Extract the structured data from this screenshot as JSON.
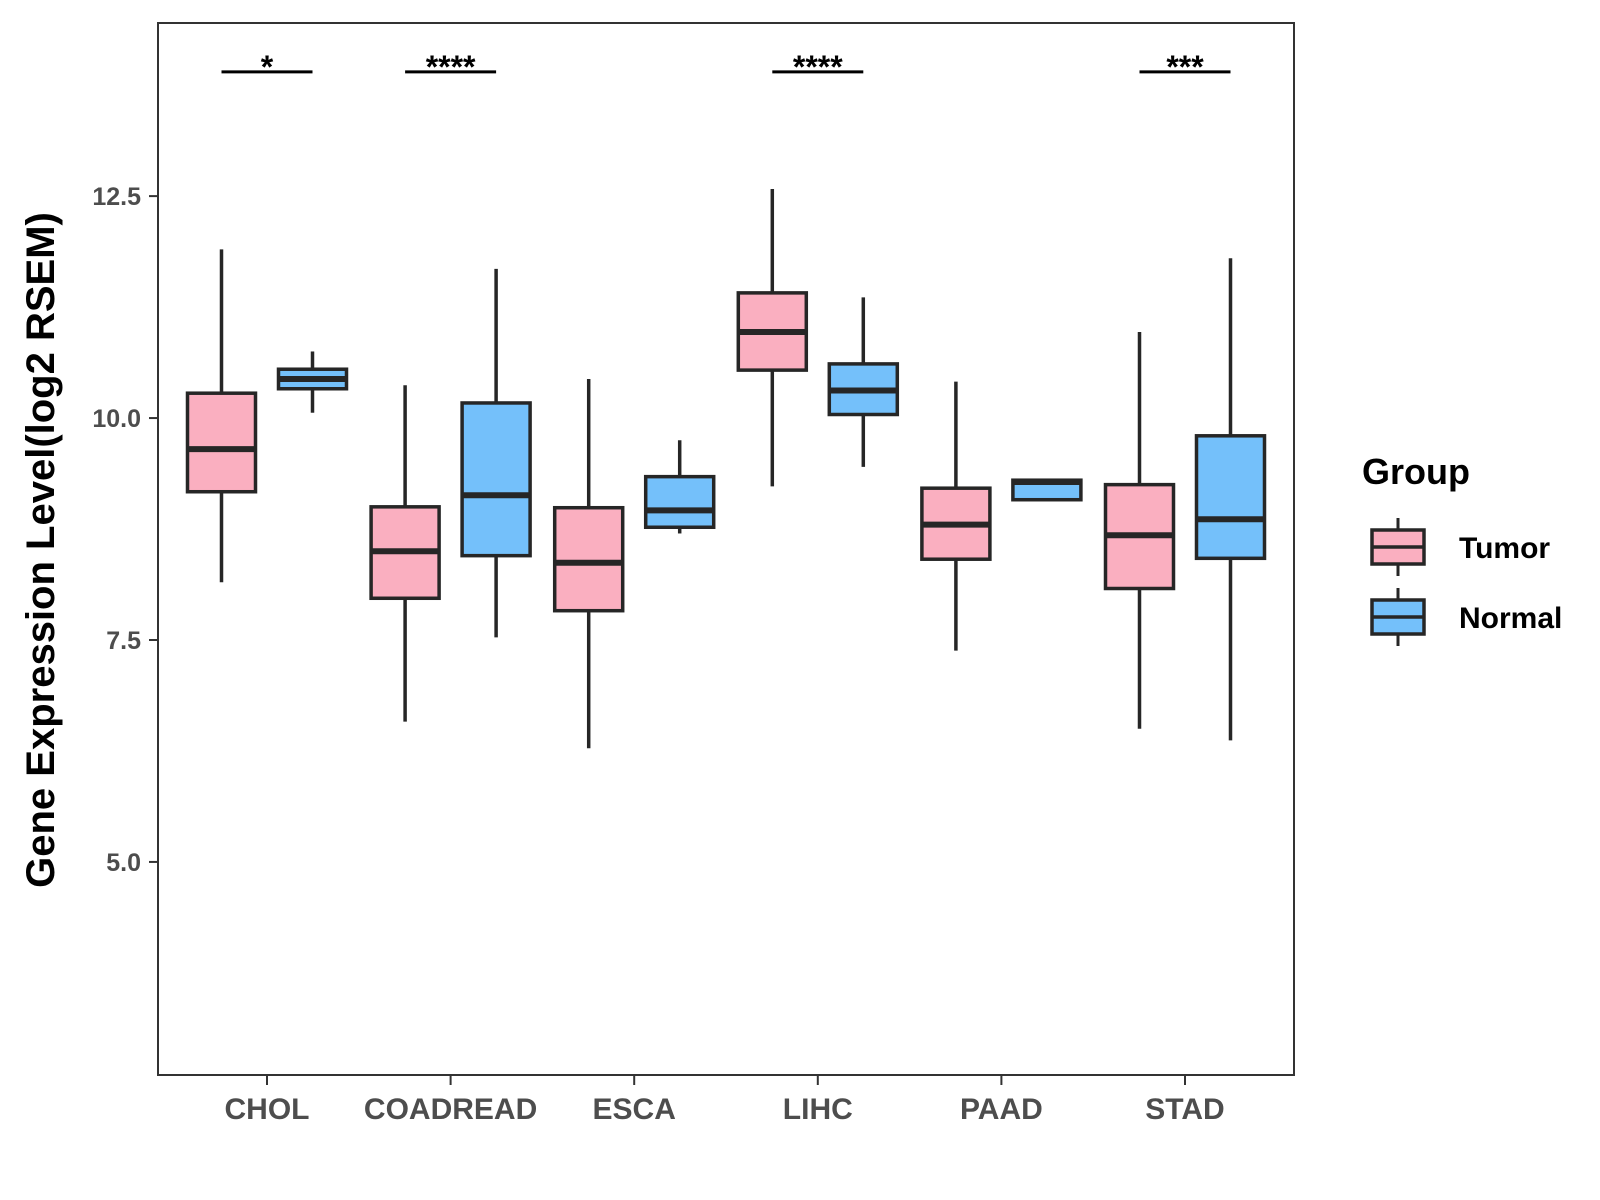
{
  "chart_data": {
    "type": "boxplot",
    "ylabel": "Gene Expression Level(log2 RSEM)",
    "xlabel": "",
    "ylim": [
      2.6,
      14.45
    ],
    "yticks": [
      5.0,
      7.5,
      10.0,
      12.5
    ],
    "ytick_labels": [
      "5.0",
      "7.5",
      "10.0",
      "12.5"
    ],
    "categories": [
      "CHOL",
      "COADREAD",
      "ESCA",
      "LIHC",
      "PAAD",
      "STAD"
    ],
    "legend": {
      "title": "Group",
      "position": "right",
      "items": [
        {
          "name": "Tumor",
          "color": "#FAAFC0"
        },
        {
          "name": "Normal",
          "color": "#74C0FA"
        }
      ]
    },
    "series": [
      {
        "name": "Tumor",
        "color": "#FAAFC0",
        "boxes": [
          {
            "category": "CHOL",
            "min": 8.15,
            "q1": 9.17,
            "median": 9.65,
            "q3": 10.28,
            "max": 11.9
          },
          {
            "category": "COADREAD",
            "min": 6.58,
            "q1": 7.97,
            "median": 8.5,
            "q3": 9.0,
            "max": 10.37
          },
          {
            "category": "ESCA",
            "min": 6.28,
            "q1": 7.83,
            "median": 8.37,
            "q3": 8.99,
            "max": 10.44
          },
          {
            "category": "LIHC",
            "min": 9.23,
            "q1": 10.54,
            "median": 10.97,
            "q3": 11.41,
            "max": 12.58
          },
          {
            "category": "PAAD",
            "min": 7.38,
            "q1": 8.41,
            "median": 8.8,
            "q3": 9.21,
            "max": 10.41
          },
          {
            "category": "STAD",
            "min": 6.5,
            "q1": 8.08,
            "median": 8.68,
            "q3": 9.25,
            "max": 10.97
          }
        ]
      },
      {
        "name": "Normal",
        "color": "#74C0FA",
        "boxes": [
          {
            "category": "CHOL",
            "min": 10.06,
            "q1": 10.33,
            "median": 10.44,
            "q3": 10.55,
            "max": 10.75
          },
          {
            "category": "COADREAD",
            "min": 7.53,
            "q1": 8.45,
            "median": 9.13,
            "q3": 10.17,
            "max": 11.68
          },
          {
            "category": "ESCA",
            "min": 8.7,
            "q1": 8.77,
            "median": 8.96,
            "q3": 9.34,
            "max": 9.75
          },
          {
            "category": "LIHC",
            "min": 9.45,
            "q1": 10.04,
            "median": 10.31,
            "q3": 10.61,
            "max": 11.36
          },
          {
            "category": "PAAD",
            "min": 9.08,
            "q1": 9.08,
            "median": 9.28,
            "q3": 9.3,
            "max": 9.3
          },
          {
            "category": "STAD",
            "min": 6.37,
            "q1": 8.42,
            "median": 8.86,
            "q3": 9.8,
            "max": 11.8
          }
        ]
      }
    ],
    "significance": [
      {
        "category": "CHOL",
        "label": "*"
      },
      {
        "category": "COADREAD",
        "label": "****"
      },
      {
        "category": "LIHC",
        "label": "****"
      },
      {
        "category": "STAD",
        "label": "***"
      }
    ],
    "significance_level": 13.9
  }
}
